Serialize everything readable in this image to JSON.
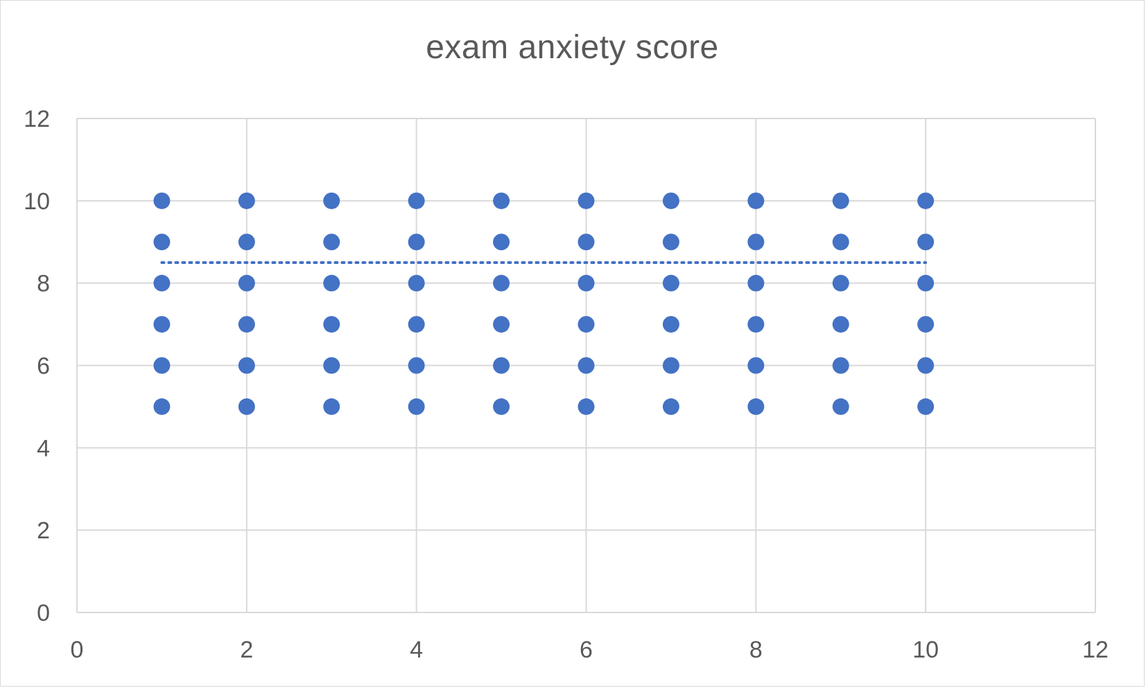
{
  "chart_data": {
    "type": "scatter",
    "title": "exam anxiety score",
    "xlabel": "",
    "ylabel": "",
    "xlim": [
      0,
      12
    ],
    "ylim": [
      0,
      12
    ],
    "x_ticks": [
      0,
      2,
      4,
      6,
      8,
      10,
      12
    ],
    "y_ticks": [
      0,
      2,
      4,
      6,
      8,
      10,
      12
    ],
    "grid": true,
    "legend": "none",
    "series": [
      {
        "color": "#4472C4",
        "points": [
          [
            1,
            10
          ],
          [
            1,
            9
          ],
          [
            1,
            8
          ],
          [
            1,
            7
          ],
          [
            1,
            6
          ],
          [
            1,
            5
          ],
          [
            2,
            10
          ],
          [
            2,
            9
          ],
          [
            2,
            8
          ],
          [
            2,
            7
          ],
          [
            2,
            6
          ],
          [
            2,
            5
          ],
          [
            3,
            10
          ],
          [
            3,
            9
          ],
          [
            3,
            8
          ],
          [
            3,
            7
          ],
          [
            3,
            6
          ],
          [
            3,
            5
          ],
          [
            4,
            10
          ],
          [
            4,
            9
          ],
          [
            4,
            8
          ],
          [
            4,
            7
          ],
          [
            4,
            6
          ],
          [
            4,
            5
          ],
          [
            5,
            10
          ],
          [
            5,
            9
          ],
          [
            5,
            8
          ],
          [
            5,
            7
          ],
          [
            5,
            6
          ],
          [
            5,
            5
          ],
          [
            6,
            10
          ],
          [
            6,
            9
          ],
          [
            6,
            8
          ],
          [
            6,
            7
          ],
          [
            6,
            6
          ],
          [
            6,
            5
          ],
          [
            7,
            10
          ],
          [
            7,
            9
          ],
          [
            7,
            8
          ],
          [
            7,
            7
          ],
          [
            7,
            6
          ],
          [
            7,
            5
          ],
          [
            8,
            10
          ],
          [
            8,
            9
          ],
          [
            8,
            8
          ],
          [
            8,
            7
          ],
          [
            8,
            6
          ],
          [
            8,
            5
          ],
          [
            9,
            10
          ],
          [
            9,
            9
          ],
          [
            9,
            8
          ],
          [
            9,
            7
          ],
          [
            9,
            6
          ],
          [
            9,
            5
          ],
          [
            10,
            10
          ],
          [
            10,
            9
          ],
          [
            10,
            8
          ],
          [
            10,
            7
          ],
          [
            10,
            6
          ],
          [
            10,
            5
          ]
        ]
      }
    ],
    "trendline": {
      "style": "dotted",
      "color": "#4472C4",
      "x": [
        1,
        10
      ],
      "y": [
        8.5,
        8.5
      ]
    }
  },
  "colors": {
    "marker": "#4472C4",
    "grid": "#d9d9d9",
    "text": "#595959"
  }
}
